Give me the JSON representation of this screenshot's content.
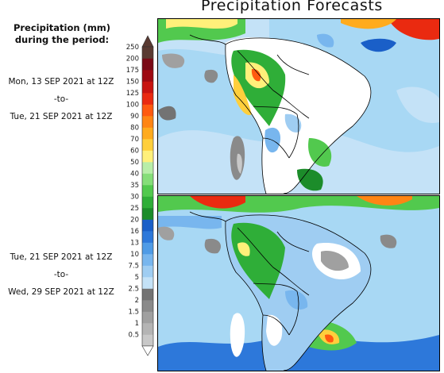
{
  "title": "Precipitation Forecasts",
  "legend": {
    "title_line1": "Precipitation (mm)",
    "title_line2": "during the period:",
    "unit": "mm",
    "levels": [
      "0.5",
      "1",
      "1.5",
      "2",
      "2.5",
      "5",
      "7.5",
      "10",
      "13",
      "16",
      "20",
      "25",
      "30",
      "35",
      "40",
      "50",
      "60",
      "70",
      "80",
      "90",
      "100",
      "125",
      "150",
      "175",
      "200",
      "250"
    ],
    "colors": [
      "#c8c8c8",
      "#b4b4b4",
      "#a0a0a0",
      "#8a8a8a",
      "#737373",
      "#c4e2f7",
      "#9fcdf2",
      "#78b6ee",
      "#4f9be6",
      "#2d78da",
      "#1a5fc8",
      "#1c8c2a",
      "#2fae38",
      "#52c94e",
      "#86de79",
      "#b8eea8",
      "#fff07a",
      "#ffcf3c",
      "#ffab1e",
      "#ff8514",
      "#ff5a10",
      "#ea2a10",
      "#c81410",
      "#9e0a12",
      "#7a0a16",
      "#5a3a32"
    ]
  },
  "panels": [
    {
      "from": "Mon, 13 SEP 2021 at 12Z",
      "separator": "-to-",
      "to": "Tue, 21 SEP 2021 at 12Z",
      "intensity": "wet-north"
    },
    {
      "from": "Tue, 21 SEP 2021 at 12Z",
      "separator": "-to-",
      "to": "Wed, 29 SEP 2021 at 12Z",
      "intensity": "wet-south"
    }
  ]
}
